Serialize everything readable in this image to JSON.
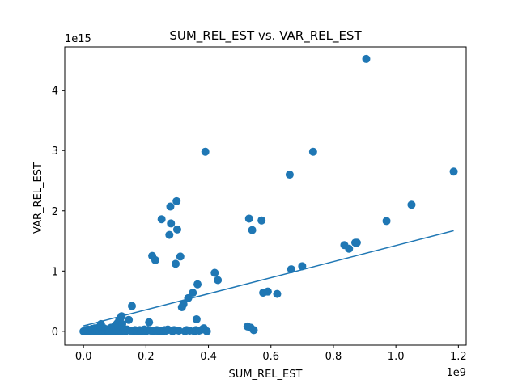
{
  "chart_data": {
    "type": "scatter",
    "title": "SUM_REL_EST vs. VAR_REL_EST",
    "xlabel": "SUM_REL_EST",
    "ylabel": "VAR_REL_EST",
    "x_offset_label": "1e9",
    "y_offset_label": "1e15",
    "xlim": [
      -0.06,
      1.225
    ],
    "ylim": [
      -0.23,
      4.72
    ],
    "xticks": [
      0.0,
      0.2,
      0.4,
      0.6,
      0.8,
      1.0,
      1.2
    ],
    "xtick_labels": [
      "0.0",
      "0.2",
      "0.4",
      "0.6",
      "0.8",
      "1.0",
      "1.2"
    ],
    "yticks": [
      0,
      1,
      2,
      3,
      4
    ],
    "ytick_labels": [
      "0",
      "1",
      "2",
      "3",
      "4"
    ],
    "grid": false,
    "color": "#1f77b4",
    "series": [
      {
        "values": [
          [
            0.0,
            0.0
          ],
          [
            0.002,
            0.0
          ],
          [
            0.004,
            0.01
          ],
          [
            0.006,
            0.0
          ],
          [
            0.008,
            0.02
          ],
          [
            0.01,
            0.0
          ],
          [
            0.012,
            0.01
          ],
          [
            0.014,
            0.03
          ],
          [
            0.016,
            0.0
          ],
          [
            0.018,
            0.01
          ],
          [
            0.02,
            0.0
          ],
          [
            0.022,
            0.02
          ],
          [
            0.024,
            0.0
          ],
          [
            0.026,
            0.01
          ],
          [
            0.028,
            0.04
          ],
          [
            0.03,
            0.0
          ],
          [
            0.032,
            0.02
          ],
          [
            0.034,
            0.0
          ],
          [
            0.036,
            0.05
          ],
          [
            0.038,
            0.01
          ],
          [
            0.04,
            0.0
          ],
          [
            0.042,
            0.03
          ],
          [
            0.044,
            0.0
          ],
          [
            0.046,
            0.02
          ],
          [
            0.048,
            0.06
          ],
          [
            0.05,
            0.0
          ],
          [
            0.052,
            0.01
          ],
          [
            0.054,
            0.08
          ],
          [
            0.056,
            0.12
          ],
          [
            0.058,
            0.03
          ],
          [
            0.06,
            0.0
          ],
          [
            0.062,
            0.02
          ],
          [
            0.064,
            0.0
          ],
          [
            0.066,
            0.05
          ],
          [
            0.068,
            0.01
          ],
          [
            0.07,
            0.0
          ],
          [
            0.072,
            0.03
          ],
          [
            0.074,
            0.0
          ],
          [
            0.076,
            0.02
          ],
          [
            0.078,
            0.01
          ],
          [
            0.08,
            0.0
          ],
          [
            0.082,
            0.04
          ],
          [
            0.084,
            0.0
          ],
          [
            0.086,
            0.02
          ],
          [
            0.088,
            0.06
          ],
          [
            0.09,
            0.0
          ],
          [
            0.092,
            0.03
          ],
          [
            0.094,
            0.0
          ],
          [
            0.096,
            0.01
          ],
          [
            0.098,
            0.07
          ],
          [
            0.1,
            0.0
          ],
          [
            0.102,
            0.1
          ],
          [
            0.104,
            0.02
          ],
          [
            0.106,
            0.05
          ],
          [
            0.108,
            0.13
          ],
          [
            0.11,
            0.0
          ],
          [
            0.112,
            0.08
          ],
          [
            0.114,
            0.18
          ],
          [
            0.116,
            0.03
          ],
          [
            0.118,
            0.22
          ],
          [
            0.12,
            0.0
          ],
          [
            0.122,
            0.25
          ],
          [
            0.124,
            0.12
          ],
          [
            0.126,
            0.05
          ],
          [
            0.128,
            0.02
          ],
          [
            0.13,
            0.01
          ],
          [
            0.135,
            0.0
          ],
          [
            0.14,
            0.03
          ],
          [
            0.145,
            0.19
          ],
          [
            0.15,
            0.01
          ],
          [
            0.155,
            0.42
          ],
          [
            0.16,
            0.0
          ],
          [
            0.165,
            0.02
          ],
          [
            0.17,
            0.01
          ],
          [
            0.175,
            0.0
          ],
          [
            0.18,
            0.02
          ],
          [
            0.185,
            0.0
          ],
          [
            0.19,
            0.01
          ],
          [
            0.195,
            0.03
          ],
          [
            0.2,
            0.0
          ],
          [
            0.205,
            0.02
          ],
          [
            0.21,
            0.15
          ],
          [
            0.215,
            0.01
          ],
          [
            0.22,
            1.25
          ],
          [
            0.225,
            0.0
          ],
          [
            0.23,
            1.18
          ],
          [
            0.235,
            0.02
          ],
          [
            0.24,
            0.0
          ],
          [
            0.245,
            0.01
          ],
          [
            0.25,
            1.86
          ],
          [
            0.255,
            0.0
          ],
          [
            0.26,
            0.02
          ],
          [
            0.265,
            0.01
          ],
          [
            0.27,
            0.03
          ],
          [
            0.275,
            1.6
          ],
          [
            0.278,
            2.07
          ],
          [
            0.28,
            1.79
          ],
          [
            0.285,
            0.0
          ],
          [
            0.29,
            0.02
          ],
          [
            0.295,
            1.12
          ],
          [
            0.298,
            2.16
          ],
          [
            0.3,
            1.69
          ],
          [
            0.305,
            0.01
          ],
          [
            0.31,
            1.24
          ],
          [
            0.315,
            0.4
          ],
          [
            0.32,
            0.45
          ],
          [
            0.325,
            0.0
          ],
          [
            0.33,
            0.02
          ],
          [
            0.335,
            0.55
          ],
          [
            0.34,
            0.01
          ],
          [
            0.35,
            0.64
          ],
          [
            0.355,
            0.0
          ],
          [
            0.36,
            0.02
          ],
          [
            0.362,
            0.2
          ],
          [
            0.365,
            0.78
          ],
          [
            0.37,
            0.01
          ],
          [
            0.38,
            0.03
          ],
          [
            0.385,
            0.05
          ],
          [
            0.39,
            2.98
          ],
          [
            0.395,
            0.0
          ],
          [
            0.42,
            0.97
          ],
          [
            0.43,
            0.85
          ],
          [
            0.525,
            0.08
          ],
          [
            0.53,
            1.87
          ],
          [
            0.535,
            0.06
          ],
          [
            0.54,
            1.68
          ],
          [
            0.545,
            0.02
          ],
          [
            0.57,
            1.84
          ],
          [
            0.575,
            0.64
          ],
          [
            0.59,
            0.66
          ],
          [
            0.62,
            0.62
          ],
          [
            0.66,
            2.6
          ],
          [
            0.665,
            1.03
          ],
          [
            0.7,
            1.08
          ],
          [
            0.735,
            2.98
          ],
          [
            0.835,
            1.43
          ],
          [
            0.85,
            1.37
          ],
          [
            0.87,
            1.47
          ],
          [
            0.875,
            1.47
          ],
          [
            0.905,
            4.52
          ],
          [
            0.97,
            1.83
          ],
          [
            1.05,
            2.1
          ],
          [
            1.185,
            2.65
          ]
        ]
      }
    ],
    "trendline": [
      [
        0.0,
        0.09
      ],
      [
        1.185,
        1.67
      ]
    ]
  }
}
